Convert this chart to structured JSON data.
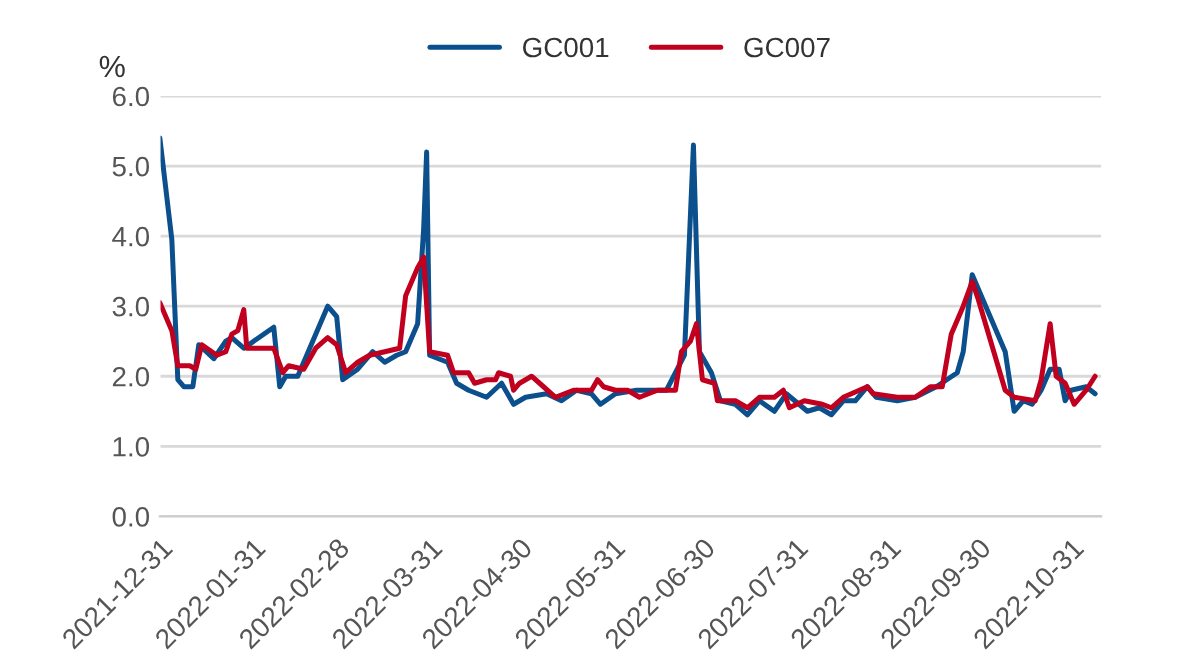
{
  "chart_data": {
    "type": "line",
    "ylabel": "%",
    "legend": "top",
    "grid": "y",
    "line_style": "solid",
    "marker": "none",
    "xlim": [
      "2021-12-31",
      "2022-11-10"
    ],
    "xticks": [
      {
        "value": "2021-12-31",
        "label": "2021-12-31"
      },
      {
        "value": "2022-01-31",
        "label": "2022-01-31"
      },
      {
        "value": "2022-02-28",
        "label": "2022-02-28"
      },
      {
        "value": "2022-03-31",
        "label": "2022-03-31"
      },
      {
        "value": "2022-04-30",
        "label": "2022-04-30"
      },
      {
        "value": "2022-05-31",
        "label": "2022-05-31"
      },
      {
        "value": "2022-06-30",
        "label": "2022-06-30"
      },
      {
        "value": "2022-07-31",
        "label": "2022-07-31"
      },
      {
        "value": "2022-08-31",
        "label": "2022-08-31"
      },
      {
        "value": "2022-09-30",
        "label": "2022-09-30"
      },
      {
        "value": "2022-10-31",
        "label": "2022-10-31"
      }
    ],
    "ylim": [
      0,
      6
    ],
    "yticks": [
      {
        "value": 0,
        "label": "0.0"
      },
      {
        "value": 1,
        "label": "1.0"
      },
      {
        "value": 2,
        "label": "2.0"
      },
      {
        "value": 3,
        "label": "3.0"
      },
      {
        "value": 4,
        "label": "4.0"
      },
      {
        "value": 5,
        "label": "5.0"
      },
      {
        "value": 6,
        "label": "6.0"
      }
    ],
    "series": [
      {
        "name": "GC001",
        "color": "#0b4f8c",
        "x": [
          "2021-12-31",
          "2022-01-04",
          "2022-01-06",
          "2022-01-08",
          "2022-01-11",
          "2022-01-13",
          "2022-01-18",
          "2022-01-22",
          "2022-01-24",
          "2022-01-28",
          "2022-02-07",
          "2022-02-09",
          "2022-02-11",
          "2022-02-15",
          "2022-02-18",
          "2022-02-25",
          "2022-02-28",
          "2022-03-02",
          "2022-03-07",
          "2022-03-12",
          "2022-03-16",
          "2022-03-20",
          "2022-03-23",
          "2022-03-27",
          "2022-03-29",
          "2022-03-30",
          "2022-03-31",
          "2022-04-06",
          "2022-04-09",
          "2022-04-13",
          "2022-04-19",
          "2022-04-24",
          "2022-04-28",
          "2022-05-02",
          "2022-05-09",
          "2022-05-14",
          "2022-05-19",
          "2022-05-24",
          "2022-05-27",
          "2022-06-01",
          "2022-06-08",
          "2022-06-18",
          "2022-06-24",
          "2022-06-27",
          "2022-06-29",
          "2022-07-03",
          "2022-07-06",
          "2022-07-11",
          "2022-07-15",
          "2022-07-19",
          "2022-07-24",
          "2022-07-28",
          "2022-08-04",
          "2022-08-08",
          "2022-08-12",
          "2022-08-16",
          "2022-08-20",
          "2022-08-24",
          "2022-08-27",
          "2022-09-03",
          "2022-09-09",
          "2022-09-16",
          "2022-09-23",
          "2022-09-25",
          "2022-09-28",
          "2022-10-09",
          "2022-10-12",
          "2022-10-15",
          "2022-10-18",
          "2022-10-21",
          "2022-10-24",
          "2022-10-27",
          "2022-10-29",
          "2022-10-31",
          "2022-11-05",
          "2022-11-08"
        ],
        "values": [
          5.4,
          3.95,
          1.95,
          1.85,
          1.85,
          2.45,
          2.25,
          2.5,
          2.55,
          2.4,
          2.7,
          1.85,
          2.0,
          2.0,
          2.3,
          3.0,
          2.85,
          1.95,
          2.1,
          2.35,
          2.2,
          2.3,
          2.35,
          2.75,
          4.1,
          5.2,
          2.3,
          2.2,
          1.9,
          1.8,
          1.7,
          1.9,
          1.6,
          1.7,
          1.75,
          1.65,
          1.8,
          1.75,
          1.6,
          1.75,
          1.8,
          1.8,
          2.3,
          5.3,
          2.35,
          2.05,
          1.65,
          1.6,
          1.45,
          1.65,
          1.5,
          1.75,
          1.5,
          1.55,
          1.45,
          1.65,
          1.65,
          1.85,
          1.7,
          1.65,
          1.7,
          1.85,
          2.05,
          2.35,
          3.45,
          2.35,
          1.5,
          1.65,
          1.6,
          1.8,
          2.1,
          2.1,
          1.65,
          1.8,
          1.85,
          1.75
        ]
      },
      {
        "name": "GC007",
        "color": "#c0001e",
        "x": [
          "2021-12-31",
          "2022-01-04",
          "2022-01-06",
          "2022-01-10",
          "2022-01-12",
          "2022-01-14",
          "2022-01-19",
          "2022-01-22",
          "2022-01-24",
          "2022-01-26",
          "2022-01-28",
          "2022-01-29",
          "2022-02-07",
          "2022-02-10",
          "2022-02-12",
          "2022-02-17",
          "2022-02-21",
          "2022-02-25",
          "2022-02-28",
          "2022-03-03",
          "2022-03-07",
          "2022-03-11",
          "2022-03-16",
          "2022-03-21",
          "2022-03-23",
          "2022-03-27",
          "2022-03-29",
          "2022-03-31",
          "2022-04-06",
          "2022-04-08",
          "2022-04-13",
          "2022-04-15",
          "2022-04-19",
          "2022-04-22",
          "2022-04-23",
          "2022-04-27",
          "2022-04-28",
          "2022-04-30",
          "2022-05-04",
          "2022-05-08",
          "2022-05-12",
          "2022-05-18",
          "2022-05-24",
          "2022-05-26",
          "2022-05-28",
          "2022-06-01",
          "2022-06-05",
          "2022-06-09",
          "2022-06-15",
          "2022-06-21",
          "2022-06-23",
          "2022-06-26",
          "2022-06-28",
          "2022-06-30",
          "2022-07-04",
          "2022-07-05",
          "2022-07-11",
          "2022-07-15",
          "2022-07-19",
          "2022-07-24",
          "2022-07-27",
          "2022-07-29",
          "2022-08-03",
          "2022-08-09",
          "2022-08-12",
          "2022-08-16",
          "2022-08-24",
          "2022-08-26",
          "2022-09-03",
          "2022-09-09",
          "2022-09-14",
          "2022-09-18",
          "2022-09-21",
          "2022-09-25",
          "2022-09-28",
          "2022-09-30",
          "2022-10-09",
          "2022-10-12",
          "2022-10-19",
          "2022-10-21",
          "2022-10-24",
          "2022-10-26",
          "2022-10-29",
          "2022-11-01",
          "2022-11-05",
          "2022-11-08"
        ],
        "values": [
          3.05,
          2.65,
          2.15,
          2.15,
          2.1,
          2.45,
          2.3,
          2.35,
          2.6,
          2.65,
          2.95,
          2.4,
          2.4,
          2.05,
          2.15,
          2.1,
          2.4,
          2.55,
          2.45,
          2.05,
          2.2,
          2.3,
          2.35,
          2.4,
          3.15,
          3.55,
          3.7,
          2.35,
          2.3,
          2.05,
          2.05,
          1.9,
          1.95,
          1.95,
          2.05,
          2.0,
          1.8,
          1.9,
          2.0,
          1.85,
          1.7,
          1.8,
          1.8,
          1.95,
          1.85,
          1.8,
          1.8,
          1.7,
          1.8,
          1.8,
          2.35,
          2.5,
          2.75,
          1.95,
          1.9,
          1.65,
          1.65,
          1.55,
          1.7,
          1.7,
          1.8,
          1.55,
          1.65,
          1.6,
          1.55,
          1.7,
          1.85,
          1.75,
          1.7,
          1.7,
          1.85,
          1.85,
          2.6,
          3.0,
          3.35,
          3.1,
          1.8,
          1.7,
          1.65,
          1.95,
          2.75,
          2.0,
          1.9,
          1.6,
          1.8,
          2.0
        ]
      }
    ]
  }
}
